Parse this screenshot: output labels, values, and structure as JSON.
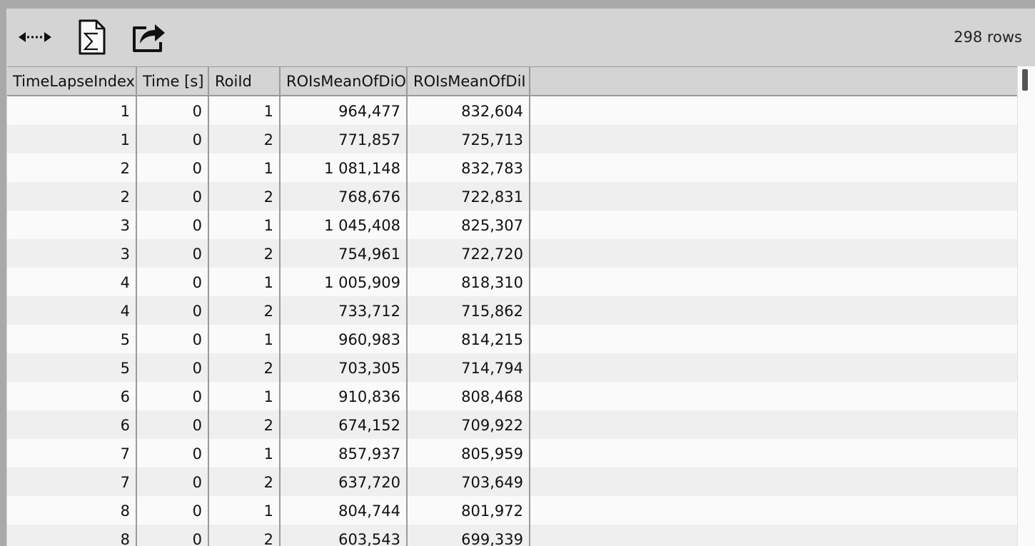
{
  "toolbar": {
    "buttons": [
      {
        "icon": "resize-columns-icon"
      },
      {
        "icon": "sum-document-icon"
      },
      {
        "icon": "share-export-icon"
      }
    ],
    "rows_count": "298 rows"
  },
  "table": {
    "columns": [
      "TimeLapseIndex",
      "Time [s]",
      "RoiId",
      "ROIsMeanOfDiO",
      "ROIsMeanOfDiI"
    ],
    "rows": [
      [
        "1",
        "0",
        "1",
        "964,477",
        "832,604"
      ],
      [
        "1",
        "0",
        "2",
        "771,857",
        "725,713"
      ],
      [
        "2",
        "0",
        "1",
        "1 081,148",
        "832,783"
      ],
      [
        "2",
        "0",
        "2",
        "768,676",
        "722,831"
      ],
      [
        "3",
        "0",
        "1",
        "1 045,408",
        "825,307"
      ],
      [
        "3",
        "0",
        "2",
        "754,961",
        "722,720"
      ],
      [
        "4",
        "0",
        "1",
        "1 005,909",
        "818,310"
      ],
      [
        "4",
        "0",
        "2",
        "733,712",
        "715,862"
      ],
      [
        "5",
        "0",
        "1",
        "960,983",
        "814,215"
      ],
      [
        "5",
        "0",
        "2",
        "703,305",
        "714,794"
      ],
      [
        "6",
        "0",
        "1",
        "910,836",
        "808,468"
      ],
      [
        "6",
        "0",
        "2",
        "674,152",
        "709,922"
      ],
      [
        "7",
        "0",
        "1",
        "857,937",
        "805,959"
      ],
      [
        "7",
        "0",
        "2",
        "637,720",
        "703,649"
      ],
      [
        "8",
        "0",
        "1",
        "804,744",
        "801,972"
      ],
      [
        "8",
        "0",
        "2",
        "603,543",
        "699,339"
      ]
    ]
  }
}
